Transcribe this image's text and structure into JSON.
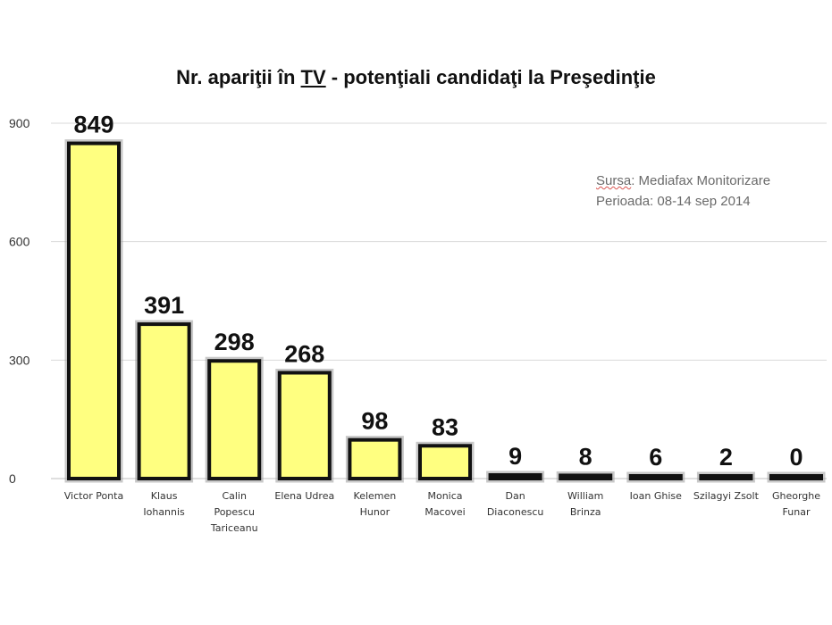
{
  "chart_data": {
    "type": "bar",
    "title_parts": {
      "before": "Nr. apariţii în ",
      "underlined": "TV",
      "after": " - potenţiali candidaţi la Preşedinţie"
    },
    "source": {
      "label": "Sursa",
      "value": ": Mediafax Monitorizare",
      "period": "Perioada: 08-14 sep 2014"
    },
    "categories": [
      [
        "Victor Ponta"
      ],
      [
        "Klaus",
        "Iohannis"
      ],
      [
        "Calin",
        "Popescu",
        "Tariceanu"
      ],
      [
        "Elena Udrea"
      ],
      [
        "Kelemen",
        "Hunor"
      ],
      [
        "Monica",
        "Macovei"
      ],
      [
        "Dan",
        "Diaconescu"
      ],
      [
        "William",
        "Brinza"
      ],
      [
        "Ioan Ghise"
      ],
      [
        "Szilagyi Zsolt"
      ],
      [
        "Gheorghe",
        "Funar"
      ]
    ],
    "values": [
      849,
      391,
      298,
      268,
      98,
      83,
      9,
      8,
      6,
      2,
      0
    ],
    "yticks": [
      0,
      300,
      600,
      900
    ],
    "ytick_labels": [
      "0",
      "300",
      "600",
      "900"
    ],
    "ylim": [
      0,
      900
    ],
    "grid": true,
    "colors": {
      "bar_fill": "#ffff80",
      "bar_stroke": "#111111"
    }
  }
}
